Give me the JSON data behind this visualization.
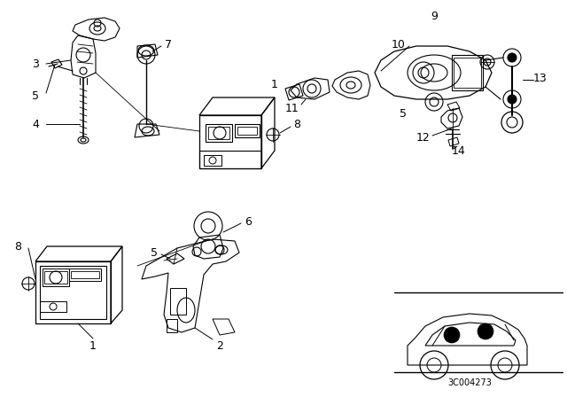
{
  "bg_color": "#ffffff",
  "line_color": "#000000",
  "fig_width": 6.4,
  "fig_height": 4.48,
  "dpi": 100,
  "diagram_code_text": "3C004273"
}
